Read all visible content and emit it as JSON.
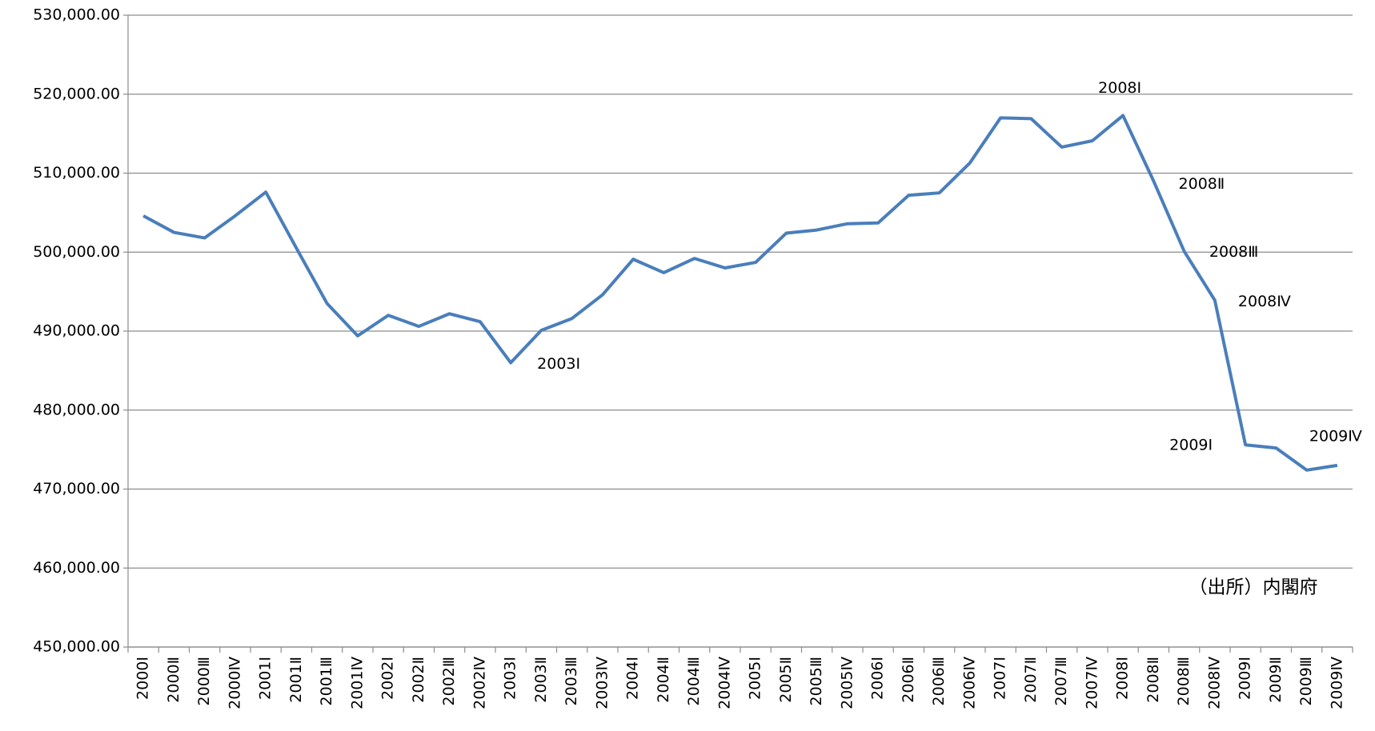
{
  "chart_data": {
    "type": "line",
    "categories": [
      "2000Ⅰ",
      "2000Ⅱ",
      "2000Ⅲ",
      "2000Ⅳ",
      "2001Ⅰ",
      "2001Ⅱ",
      "2001Ⅲ",
      "2001Ⅳ",
      "2002Ⅰ",
      "2002Ⅱ",
      "2002Ⅲ",
      "2002Ⅳ",
      "2003Ⅰ",
      "2003Ⅱ",
      "2003Ⅲ",
      "2003Ⅳ",
      "2004Ⅰ",
      "2004Ⅱ",
      "2004Ⅲ",
      "2004Ⅳ",
      "2005Ⅰ",
      "2005Ⅱ",
      "2005Ⅲ",
      "2005Ⅳ",
      "2006Ⅰ",
      "2006Ⅱ",
      "2006Ⅲ",
      "2006Ⅳ",
      "2007Ⅰ",
      "2007Ⅱ",
      "2007Ⅲ",
      "2007Ⅳ",
      "2008Ⅰ",
      "2008Ⅱ",
      "2008Ⅲ",
      "2008Ⅳ",
      "2009Ⅰ",
      "2009Ⅱ",
      "2009Ⅲ",
      "2009Ⅳ"
    ],
    "series": [
      {
        "color": "#4a7ebb",
        "values": [
          504600,
          502500,
          501800,
          504600,
          507600,
          500500,
          493500,
          489400,
          492000,
          490600,
          492200,
          491200,
          486000,
          490100,
          491600,
          494600,
          499100,
          497400,
          499200,
          498000,
          498700,
          502400,
          502800,
          503600,
          503700,
          507200,
          507500,
          511300,
          517000,
          516900,
          513300,
          514100,
          517300,
          509000,
          500100,
          493900,
          475600,
          475200,
          472400,
          473000
        ]
      }
    ],
    "ylim": [
      450000,
      530000
    ],
    "yticks": [
      {
        "value": 450000,
        "label": "450,000.00"
      },
      {
        "value": 460000,
        "label": "460,000.00"
      },
      {
        "value": 470000,
        "label": "470,000.00"
      },
      {
        "value": 480000,
        "label": "480,000.00"
      },
      {
        "value": 490000,
        "label": "490,000.00"
      },
      {
        "value": 500000,
        "label": "500,000.00"
      },
      {
        "value": 510000,
        "label": "510,000.00"
      },
      {
        "value": 520000,
        "label": "520,000.00"
      },
      {
        "value": 530000,
        "label": "530,000.00"
      }
    ],
    "grid": true,
    "annotations": [
      "2003Ⅰ",
      "2008Ⅰ",
      "2008Ⅱ",
      "2008Ⅲ",
      "2008Ⅳ",
      "2009Ⅰ",
      "2009Ⅳ"
    ],
    "source": "（出所）内閣府"
  }
}
